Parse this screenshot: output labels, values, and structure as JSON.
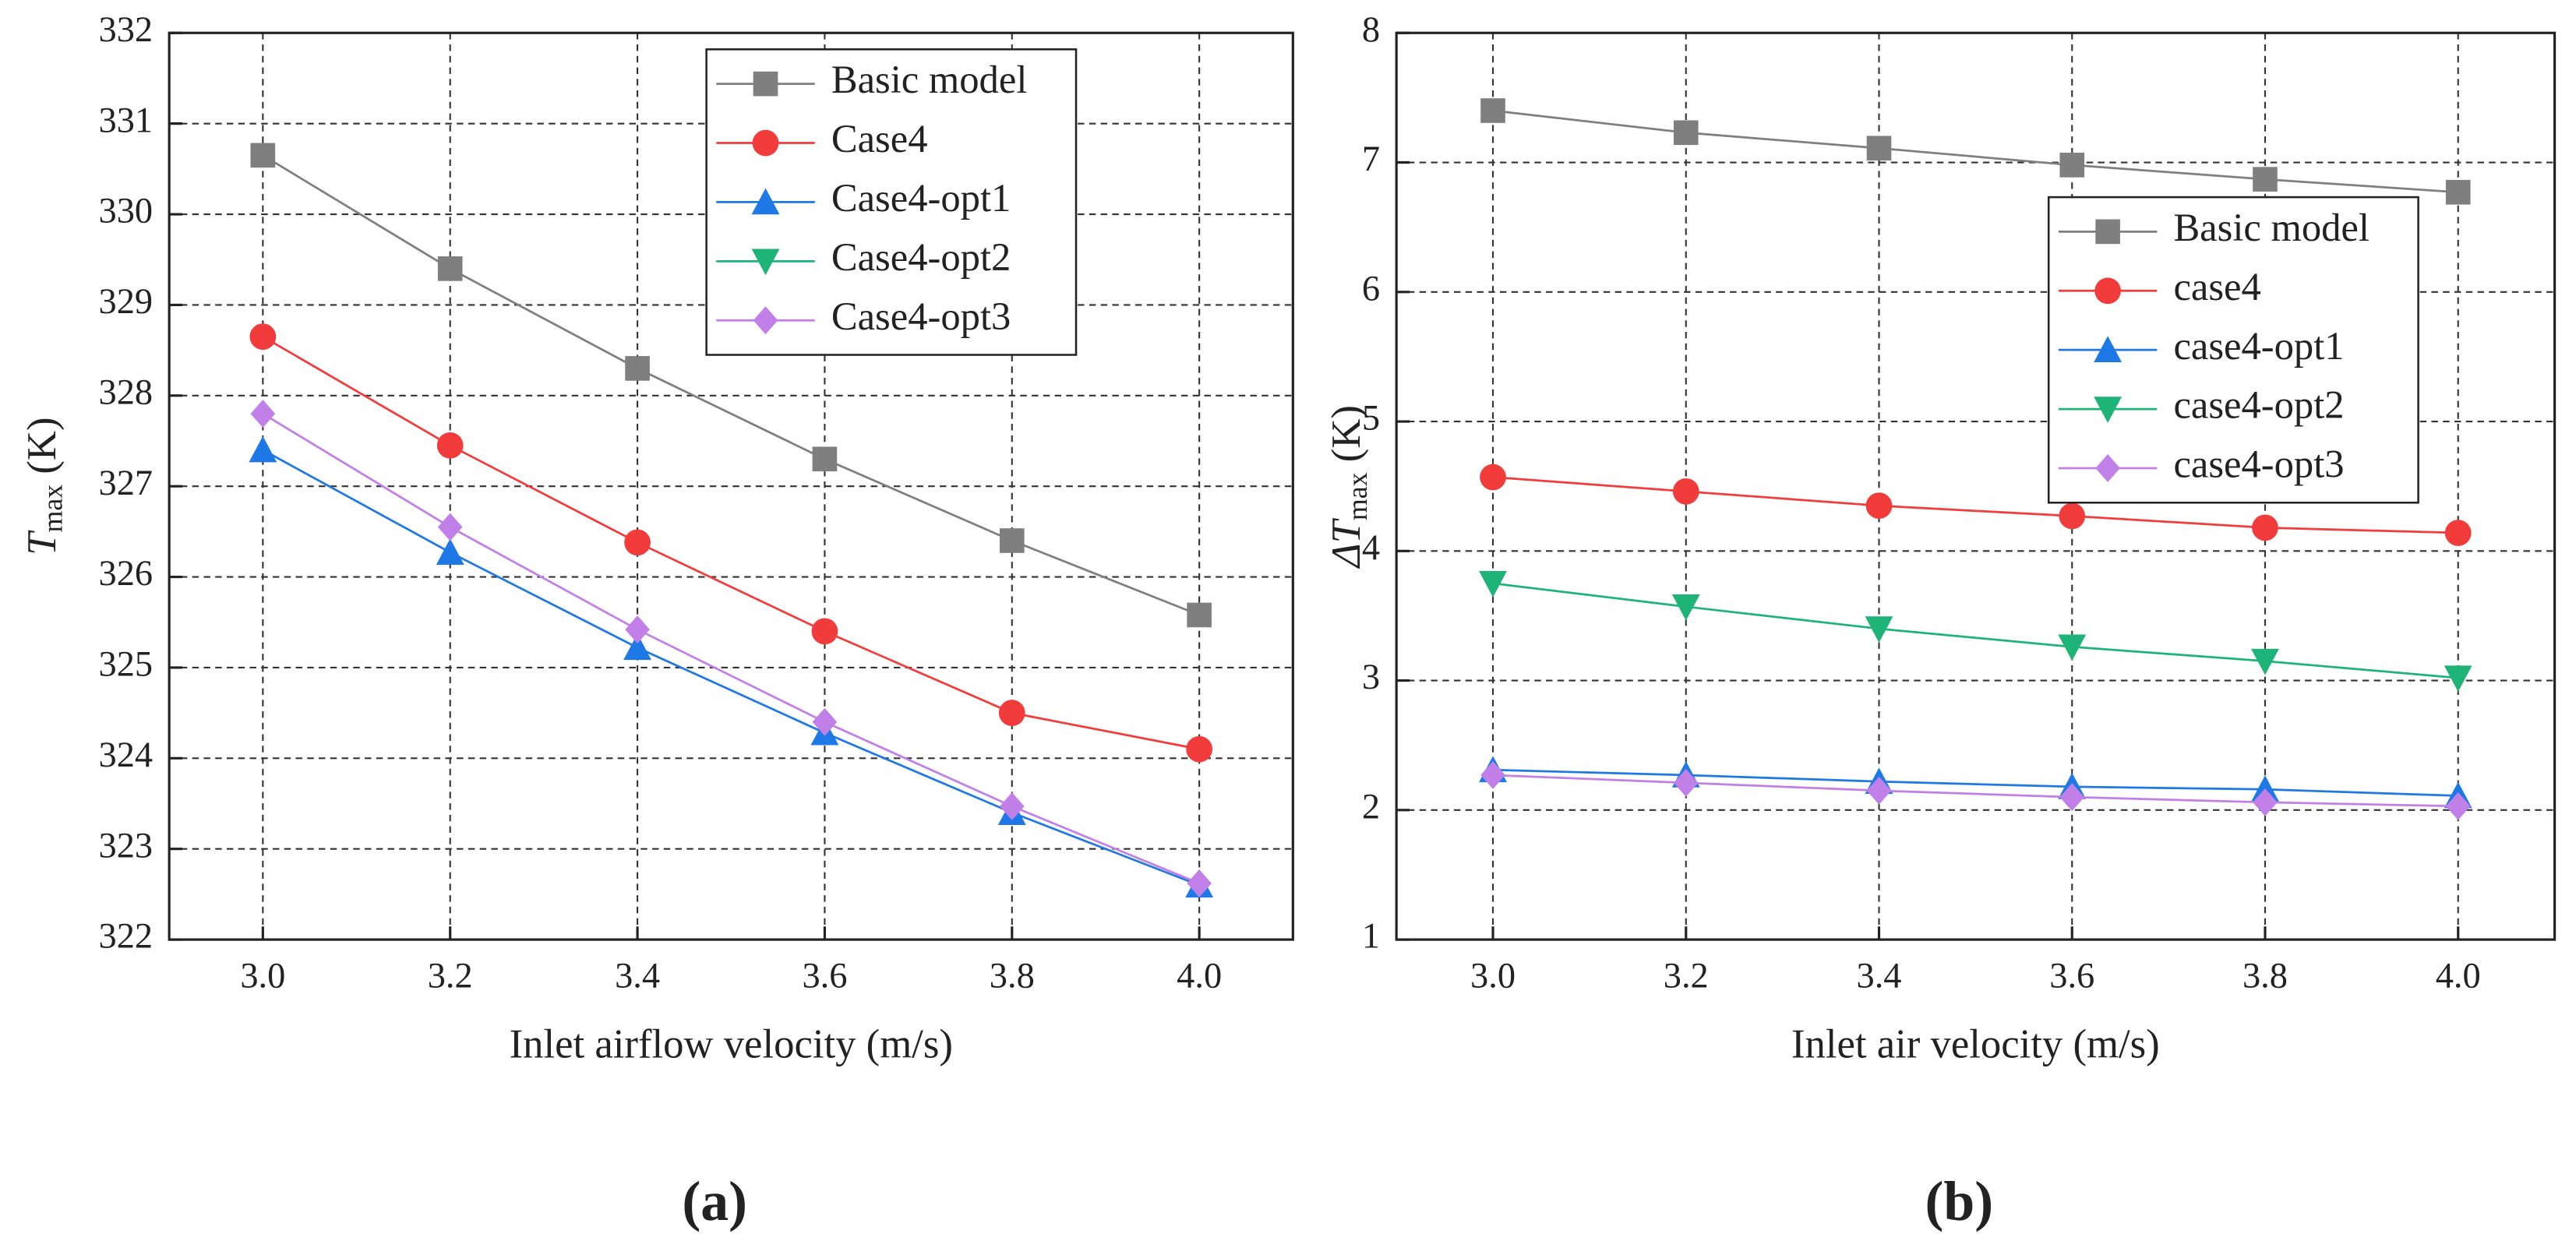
{
  "chart_data": [
    {
      "type": "line",
      "panel_label": "(a)",
      "xlabel": "Inlet airflow velocity (m/s)",
      "ylabel": {
        "symbol": "T",
        "subscript": "max",
        "unit": " (K)"
      },
      "x": [
        3.0,
        3.2,
        3.4,
        3.6,
        3.8,
        4.0
      ],
      "xlim": [
        2.9,
        4.1
      ],
      "xticks": [
        {
          "value": 3.0,
          "label": "3.0"
        },
        {
          "value": 3.2,
          "label": "3.2"
        },
        {
          "value": 3.4,
          "label": "3.4"
        },
        {
          "value": 3.6,
          "label": "3.6"
        },
        {
          "value": 3.8,
          "label": "3.8"
        },
        {
          "value": 4.0,
          "label": "4.0"
        }
      ],
      "ylim": [
        322,
        332
      ],
      "yticks": [
        322,
        323,
        324,
        325,
        326,
        327,
        328,
        329,
        330,
        331,
        332
      ],
      "grid": true,
      "legend": "upper center-right",
      "series": [
        {
          "name": "Basic model",
          "color": "#7f7f7f",
          "marker": "square",
          "values": [
            330.65,
            329.4,
            328.3,
            327.3,
            326.4,
            325.58
          ]
        },
        {
          "name": "Case4",
          "color": "#f23c3c",
          "marker": "circle",
          "values": [
            328.65,
            327.45,
            326.38,
            325.4,
            324.5,
            324.1
          ]
        },
        {
          "name": "Case4-opt1",
          "color": "#1e78e6",
          "marker": "triangle-up",
          "values": [
            327.4,
            326.27,
            325.22,
            324.28,
            323.4,
            322.6
          ]
        },
        {
          "name": "Case4-opt2",
          "color": "#1eb478",
          "marker": "triangle-down",
          "values": [
            null,
            null,
            null,
            null,
            null,
            null
          ]
        },
        {
          "name": "Case4-opt3",
          "color": "#c080e8",
          "marker": "diamond",
          "values": [
            327.8,
            326.55,
            325.42,
            324.4,
            323.47,
            322.62
          ]
        }
      ]
    },
    {
      "type": "line",
      "panel_label": "(b)",
      "xlabel": "Inlet air velocity (m/s)",
      "ylabel": {
        "symbol": "ΔT",
        "subscript": "max",
        "unit": " (K)"
      },
      "x": [
        3.0,
        3.2,
        3.4,
        3.6,
        3.8,
        4.0
      ],
      "xlim": [
        2.9,
        4.1
      ],
      "xticks": [
        {
          "value": 3.0,
          "label": "3.0"
        },
        {
          "value": 3.2,
          "label": "3.2"
        },
        {
          "value": 3.4,
          "label": "3.4"
        },
        {
          "value": 3.6,
          "label": "3.6"
        },
        {
          "value": 3.8,
          "label": "3.8"
        },
        {
          "value": 4.0,
          "label": "4.0"
        }
      ],
      "ylim": [
        1,
        8
      ],
      "yticks": [
        1,
        2,
        3,
        4,
        5,
        6,
        7,
        8
      ],
      "grid": true,
      "legend": "center right",
      "series": [
        {
          "name": "Basic model",
          "color": "#7f7f7f",
          "marker": "square",
          "values": [
            7.4,
            7.23,
            7.11,
            6.98,
            6.87,
            6.77
          ]
        },
        {
          "name": "case4",
          "color": "#f23c3c",
          "marker": "circle",
          "values": [
            4.57,
            4.46,
            4.35,
            4.27,
            4.18,
            4.14
          ]
        },
        {
          "name": "case4-opt1",
          "color": "#1e78e6",
          "marker": "triangle-up",
          "values": [
            2.31,
            2.27,
            2.22,
            2.18,
            2.16,
            2.11
          ]
        },
        {
          "name": "case4-opt2",
          "color": "#1eb478",
          "marker": "triangle-down",
          "values": [
            3.75,
            3.57,
            3.4,
            3.26,
            3.15,
            3.02
          ]
        },
        {
          "name": "case4-opt3",
          "color": "#c080e8",
          "marker": "diamond",
          "values": [
            2.27,
            2.21,
            2.15,
            2.1,
            2.06,
            2.03
          ]
        }
      ]
    }
  ]
}
